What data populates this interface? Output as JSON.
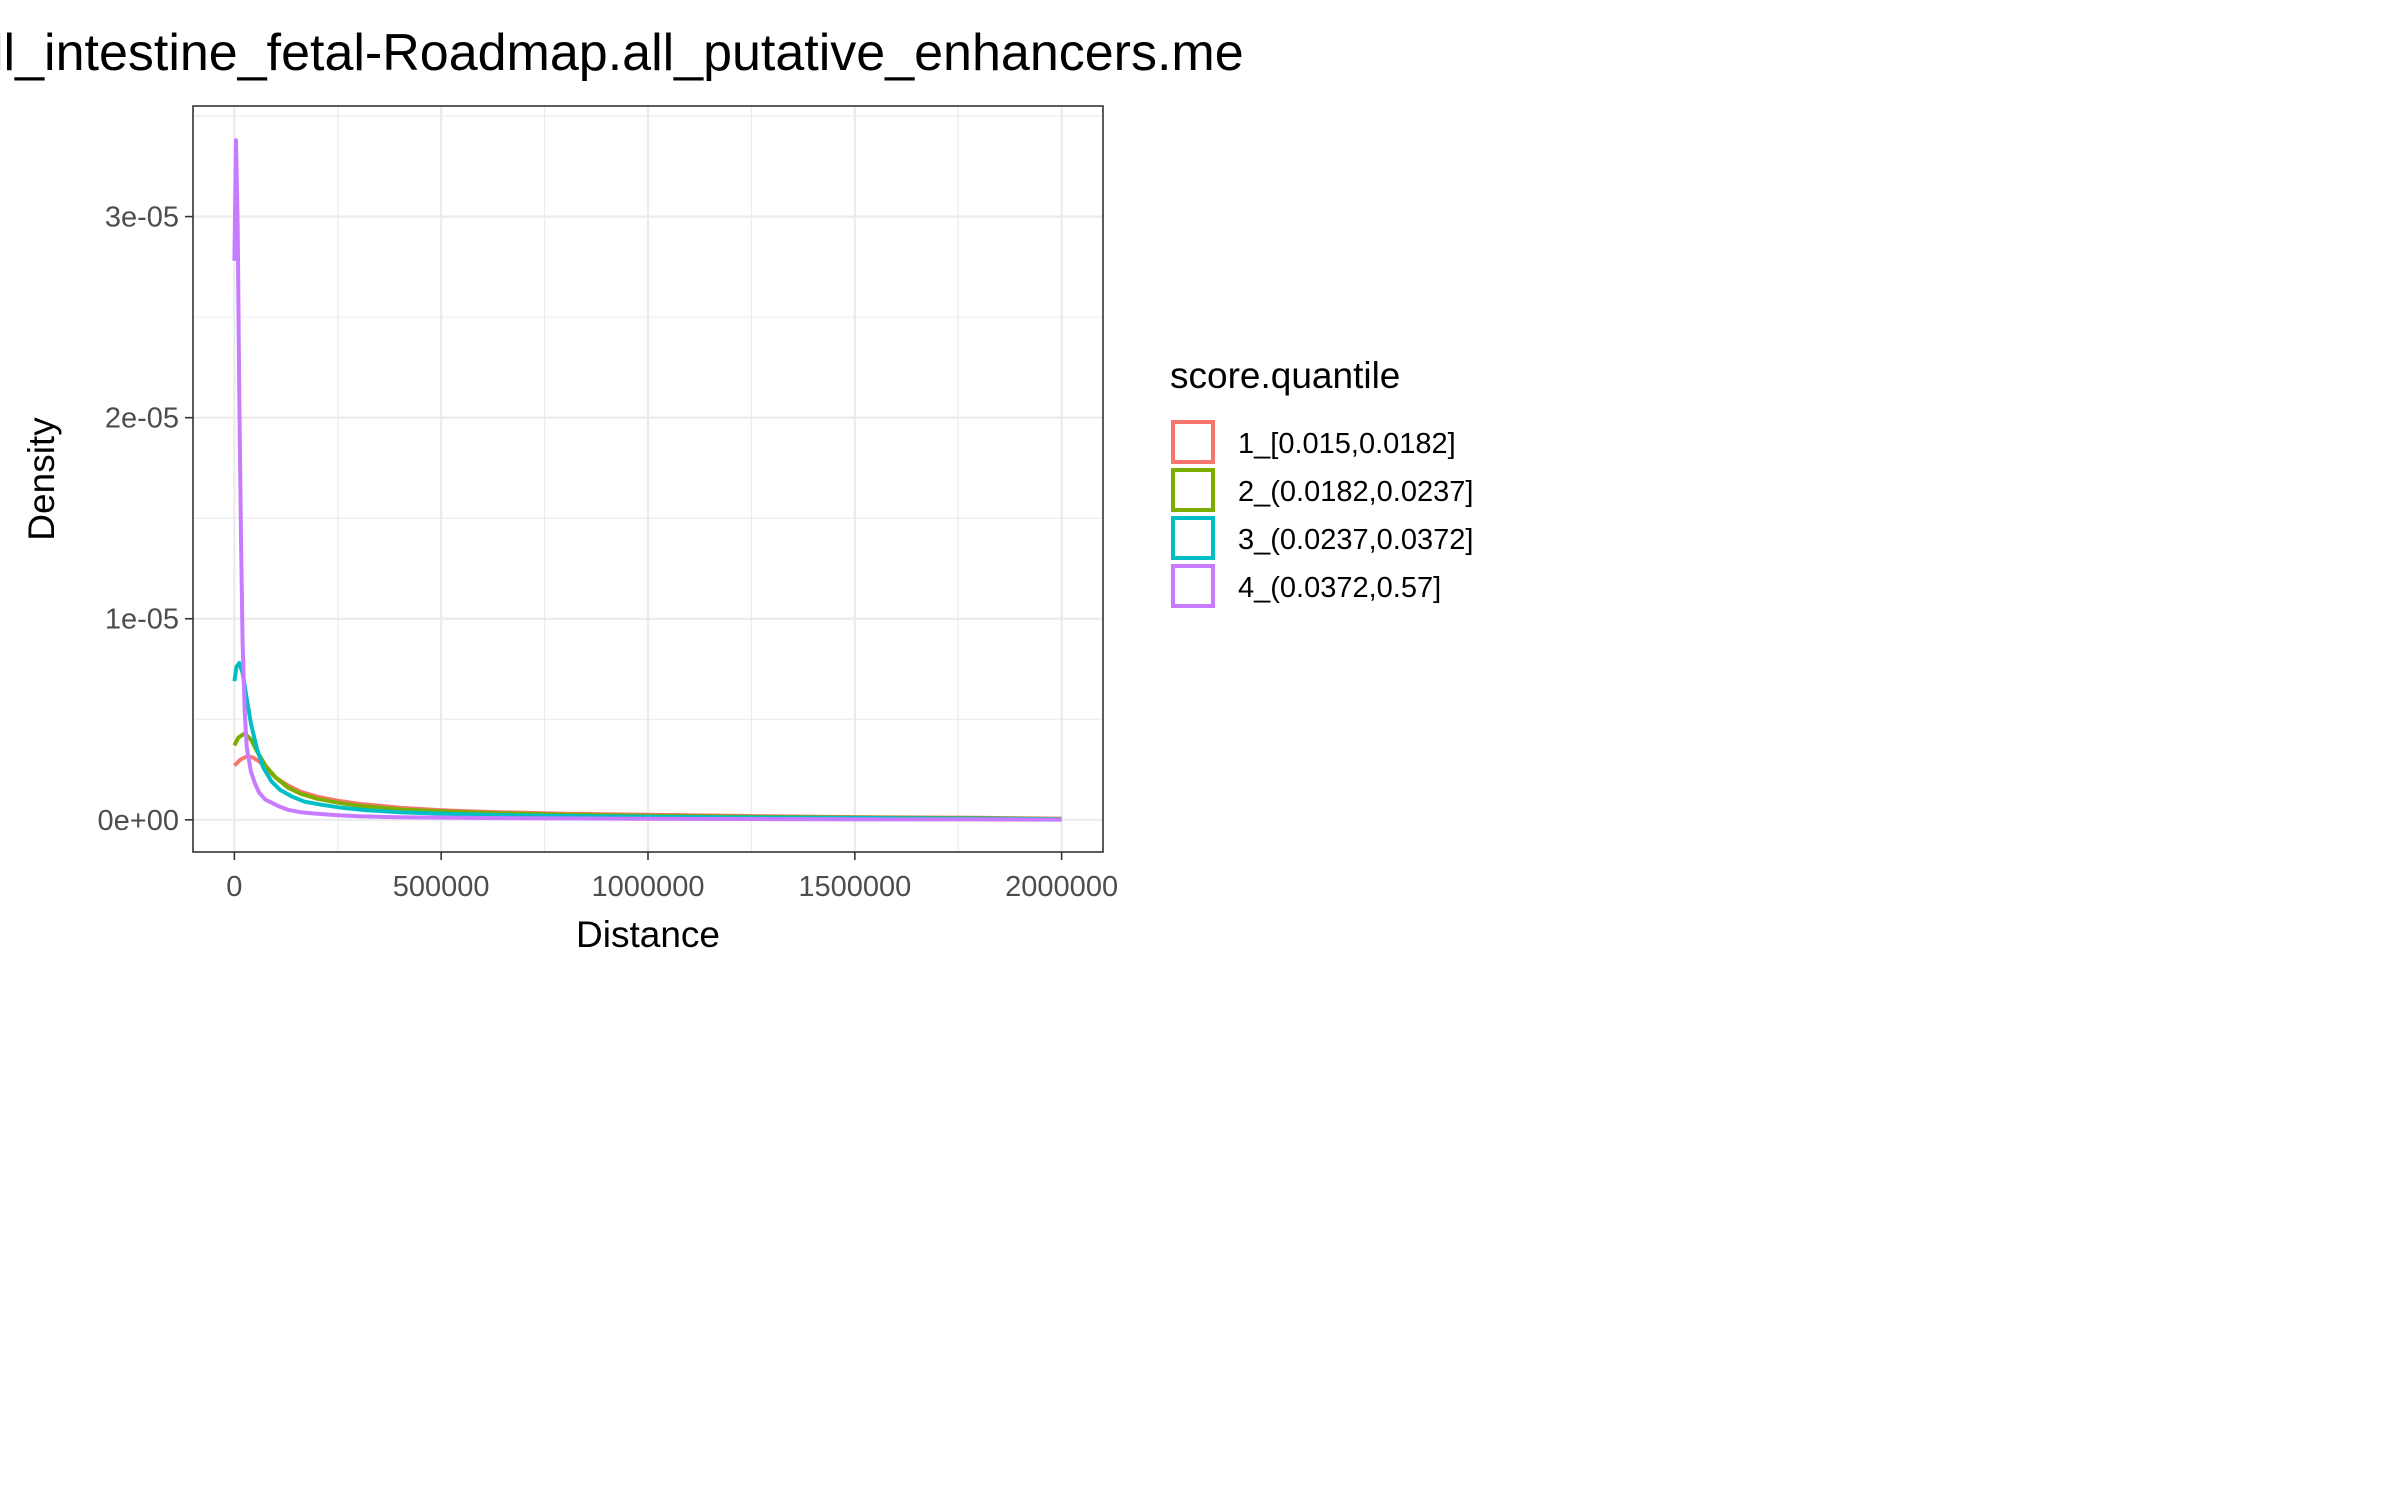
{
  "chart_data": {
    "type": "line",
    "title": "ll_intestine_fetal-Roadmap.all_putative_enhancers.me",
    "xlabel": "Distance",
    "ylabel": "Density",
    "xlim": [
      -100000,
      2100000
    ],
    "ylim": [
      -1.6e-06,
      3.55e-05
    ],
    "x_ticks": [
      0,
      500000,
      1000000,
      1500000,
      2000000
    ],
    "x_tick_labels": [
      "0",
      "500000",
      "1000000",
      "1500000",
      "2000000"
    ],
    "y_ticks": [
      0,
      1e-05,
      2e-05,
      3e-05
    ],
    "y_tick_labels": [
      "0e+00",
      "1e-05",
      "2e-05",
      "3e-05"
    ],
    "grid": true,
    "legend": {
      "title": "score.quantile",
      "position": "right"
    },
    "series": [
      {
        "name": "1_[0.015,0.0182]",
        "color": "#F8766D",
        "points": [
          [
            0,
            2.7e-06
          ],
          [
            15000,
            3e-06
          ],
          [
            30000,
            3.15e-06
          ],
          [
            45000,
            3.1e-06
          ],
          [
            60000,
            2.9e-06
          ],
          [
            80000,
            2.5e-06
          ],
          [
            100000,
            2.1e-06
          ],
          [
            130000,
            1.7e-06
          ],
          [
            160000,
            1.4e-06
          ],
          [
            200000,
            1.15e-06
          ],
          [
            250000,
            9.5e-07
          ],
          [
            300000,
            8e-07
          ],
          [
            400000,
            6e-07
          ],
          [
            500000,
            4.8e-07
          ],
          [
            600000,
            4e-07
          ],
          [
            700000,
            3.5e-07
          ],
          [
            800000,
            3e-07
          ],
          [
            1000000,
            2.5e-07
          ],
          [
            1200000,
            2e-07
          ],
          [
            1400000,
            1.5e-07
          ],
          [
            1600000,
            1.2e-07
          ],
          [
            1800000,
            1e-07
          ],
          [
            2000000,
            5e-08
          ]
        ]
      },
      {
        "name": "2_(0.0182,0.0237]",
        "color": "#7CAE00",
        "points": [
          [
            0,
            3.7e-06
          ],
          [
            10000,
            4.1e-06
          ],
          [
            25000,
            4.3e-06
          ],
          [
            40000,
            4e-06
          ],
          [
            55000,
            3.4e-06
          ],
          [
            75000,
            2.7e-06
          ],
          [
            100000,
            2.1e-06
          ],
          [
            130000,
            1.6e-06
          ],
          [
            160000,
            1.3e-06
          ],
          [
            200000,
            1.05e-06
          ],
          [
            250000,
            8.5e-07
          ],
          [
            300000,
            7e-07
          ],
          [
            400000,
            5.2e-07
          ],
          [
            500000,
            4.2e-07
          ],
          [
            600000,
            3.5e-07
          ],
          [
            700000,
            3e-07
          ],
          [
            800000,
            2.6e-07
          ],
          [
            1000000,
            2e-07
          ],
          [
            1200000,
            1.6e-07
          ],
          [
            1400000,
            1.3e-07
          ],
          [
            1600000,
            1e-07
          ],
          [
            1800000,
            8e-08
          ],
          [
            2000000,
            4e-08
          ]
        ]
      },
      {
        "name": "3_(0.0237,0.0372]",
        "color": "#00BFC4",
        "points": [
          [
            0,
            6.9e-06
          ],
          [
            5000,
            7.6e-06
          ],
          [
            12000,
            7.8e-06
          ],
          [
            20000,
            7.3e-06
          ],
          [
            30000,
            6e-06
          ],
          [
            40000,
            4.8e-06
          ],
          [
            55000,
            3.5e-06
          ],
          [
            70000,
            2.6e-06
          ],
          [
            90000,
            1.9e-06
          ],
          [
            110000,
            1.5e-06
          ],
          [
            140000,
            1.15e-06
          ],
          [
            170000,
            9e-07
          ],
          [
            210000,
            7.5e-07
          ],
          [
            260000,
            6e-07
          ],
          [
            320000,
            4.8e-07
          ],
          [
            400000,
            3.8e-07
          ],
          [
            500000,
            3.1e-07
          ],
          [
            600000,
            2.6e-07
          ],
          [
            700000,
            2.2e-07
          ],
          [
            800000,
            1.9e-07
          ],
          [
            1000000,
            1.5e-07
          ],
          [
            1200000,
            1.2e-07
          ],
          [
            1400000,
            1e-07
          ],
          [
            1600000,
            8e-08
          ],
          [
            1800000,
            6e-08
          ],
          [
            2000000,
            3e-08
          ]
        ]
      },
      {
        "name": "4_(0.0372,0.57]",
        "color": "#C77CFF",
        "points": [
          [
            0,
            2.78e-05
          ],
          [
            4000,
            3.38e-05
          ],
          [
            8000,
            2.95e-05
          ],
          [
            12000,
            2.1e-05
          ],
          [
            16000,
            1.4e-05
          ],
          [
            20000,
            8.8e-06
          ],
          [
            25000,
            5.4e-06
          ],
          [
            30000,
            3.6e-06
          ],
          [
            40000,
            2.4e-06
          ],
          [
            50000,
            1.8e-06
          ],
          [
            60000,
            1.35e-06
          ],
          [
            75000,
            1e-06
          ],
          [
            90000,
            8.5e-07
          ],
          [
            110000,
            6.5e-07
          ],
          [
            130000,
            5e-07
          ],
          [
            160000,
            3.8e-07
          ],
          [
            200000,
            3e-07
          ],
          [
            250000,
            2.3e-07
          ],
          [
            300000,
            1.8e-07
          ],
          [
            350000,
            1.5e-07
          ],
          [
            400000,
            1.3e-07
          ],
          [
            500000,
            1.1e-07
          ],
          [
            600000,
            9e-08
          ],
          [
            700000,
            8e-08
          ],
          [
            800000,
            7e-08
          ],
          [
            1000000,
            5e-08
          ],
          [
            1200000,
            4e-08
          ],
          [
            1400000,
            3e-08
          ],
          [
            1600000,
            2e-08
          ],
          [
            1800000,
            2e-08
          ],
          [
            2000000,
            1e-08
          ]
        ]
      }
    ]
  }
}
